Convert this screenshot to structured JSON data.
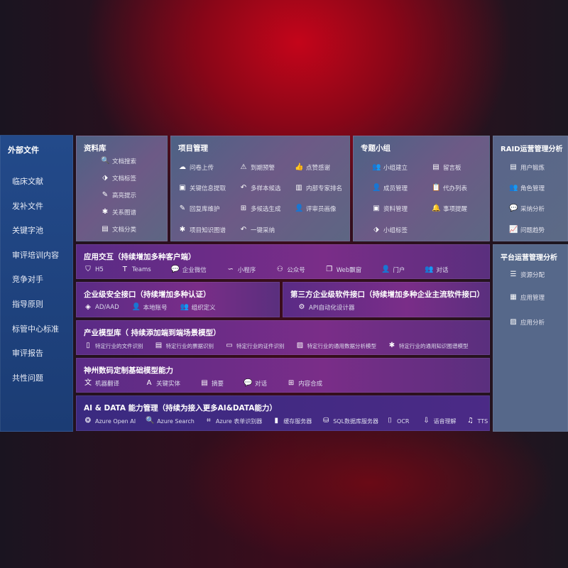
{
  "sidebar": {
    "title": "外部文件",
    "items": [
      "临床文献",
      "发补文件",
      "关键字池",
      "审评培训内容",
      "竞争对手",
      "指导原则",
      "标管中心标准",
      "审评报告",
      "共性问题"
    ]
  },
  "library": {
    "title": "资料库",
    "items": [
      "文档搜索",
      "文档标签",
      "高亮提示",
      "关系图谱",
      "文档分类"
    ]
  },
  "project": {
    "title": "项目管理",
    "items": [
      "问卷上传",
      "到期预警",
      "点赞感谢",
      "关键信息提取",
      "多样本候选",
      "内部专家排名",
      "回复库维护",
      "多候选生成",
      "评审员画像",
      "项目知识图谱",
      "一键采纳"
    ]
  },
  "group": {
    "title": "专题小组",
    "items": [
      "小组建立",
      "留言板",
      "成员管理",
      "代办列表",
      "资料管理",
      "事项提醒",
      "小组标签"
    ]
  },
  "raid": {
    "title": "RAID运营管理分析",
    "items": [
      "用户锻炼",
      "角色管理",
      "采纳分析",
      "问题趋势"
    ]
  },
  "platform": {
    "title": "平台运营管理分析",
    "items": [
      "资源分配",
      "应用管理",
      "应用分析"
    ]
  },
  "app": {
    "title": "应用交互（持续增加多种客户端）",
    "items": [
      "H5",
      "Teams",
      "企业微信",
      "小程序",
      "公众号",
      "Web飘窗",
      "门户",
      "对话"
    ]
  },
  "security": {
    "title": "企业级安全接口（持续增加多种认证）",
    "items": [
      "AD/AAD",
      "本地账号",
      "组织定义"
    ]
  },
  "thirdparty": {
    "title": "第三方企业级软件接口（持续增加多种企业主流软件接口）",
    "items": [
      "API自动化设计器"
    ]
  },
  "industry": {
    "title": "产业模型库（ 持续添加端到端场景模型）",
    "items": [
      "特定行业的文件识别",
      "特定行业的票据识别",
      "特定行业的证件识别",
      "特定行业的通用数据分析模型",
      "特定行业的通用知识图谱模型"
    ]
  },
  "base": {
    "title": "神州数码定制基础模型能力",
    "items": [
      "机器翻译",
      "关键实体",
      "摘要",
      "对话",
      "内容合成"
    ]
  },
  "ai": {
    "title": "AI & DATA 能力管理（持续为接入更多AI&DATA能力）",
    "items": [
      "Azure Open AI",
      "Azure Search",
      "Azure 表单识别器",
      "缓存服务器",
      "SQL数据库服务器",
      "OCR",
      "语音理解",
      "TTS"
    ]
  }
}
